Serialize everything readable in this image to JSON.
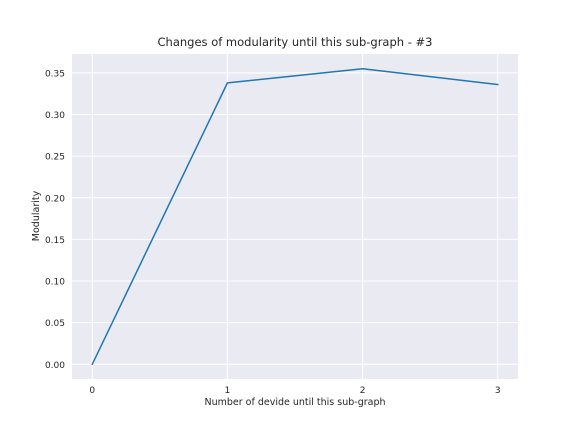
{
  "chart_data": {
    "type": "line",
    "title": "Changes of modularity until this sub-graph - #3",
    "xlabel": "Number of devide until this sub-graph",
    "ylabel": "Modularity",
    "x": [
      0,
      1,
      2,
      3
    ],
    "series": [
      {
        "values": [
          0.0,
          0.338,
          0.355,
          0.336
        ]
      }
    ],
    "xlim": [
      -0.15,
      3.15
    ],
    "ylim": [
      -0.0177,
      0.3727
    ],
    "xticks": [
      0,
      1,
      2,
      3
    ],
    "yticks": [
      0.0,
      0.05,
      0.1,
      0.15,
      0.2,
      0.25,
      0.3,
      0.35
    ],
    "ytick_labels": [
      "0.00",
      "0.05",
      "0.10",
      "0.15",
      "0.20",
      "0.25",
      "0.30",
      "0.35"
    ],
    "xtick_labels": [
      "0",
      "1",
      "2",
      "3"
    ],
    "grid": true,
    "style": "seaborn-darkgrid",
    "colors": {
      "background": "#eaeaf2",
      "grid": "#ffffff",
      "line": "#1f77b4",
      "text": "#262626"
    }
  }
}
